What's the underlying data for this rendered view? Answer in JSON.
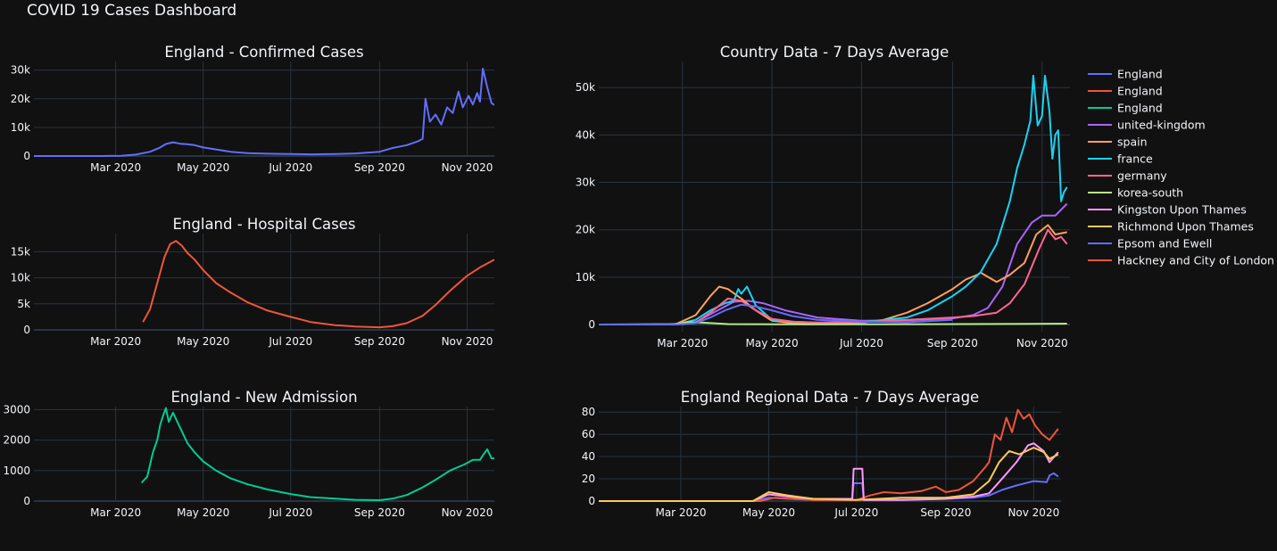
{
  "dashboard": {
    "title": "COVID 19 Cases Dashboard"
  },
  "chart_data": [
    {
      "id": "confirmed",
      "type": "line",
      "title": "England - Confirmed Cases",
      "xlim": [
        "2020-01-04",
        "2020-11-20"
      ],
      "ylim": [
        0,
        33000
      ],
      "yticks": [
        0,
        10000,
        20000,
        30000
      ],
      "ytick_labels": [
        "0",
        "10k",
        "20k",
        "30k"
      ],
      "xticks": [
        "2020-03-01",
        "2020-05-01",
        "2020-07-01",
        "2020-09-01",
        "2020-11-01"
      ],
      "xtick_labels": [
        "Mar 2020",
        "May 2020",
        "Jul 2020",
        "Sep 2020",
        "Nov 2020"
      ],
      "series": [
        {
          "color": "#636efa",
          "x": [
            "2020-01-04",
            "2020-02-20",
            "2020-03-05",
            "2020-03-15",
            "2020-03-25",
            "2020-04-01",
            "2020-04-05",
            "2020-04-10",
            "2020-04-15",
            "2020-04-20",
            "2020-04-25",
            "2020-05-01",
            "2020-05-10",
            "2020-05-20",
            "2020-06-01",
            "2020-06-15",
            "2020-07-01",
            "2020-07-15",
            "2020-08-01",
            "2020-08-15",
            "2020-09-01",
            "2020-09-10",
            "2020-09-20",
            "2020-09-28",
            "2020-10-01",
            "2020-10-03",
            "2020-10-06",
            "2020-10-10",
            "2020-10-14",
            "2020-10-18",
            "2020-10-22",
            "2020-10-26",
            "2020-10-29",
            "2020-11-02",
            "2020-11-05",
            "2020-11-08",
            "2020-11-10",
            "2020-11-12",
            "2020-11-15",
            "2020-11-18",
            "2020-11-20"
          ],
          "y": [
            0,
            0,
            100,
            500,
            1500,
            3000,
            4200,
            4800,
            4300,
            4100,
            3800,
            3000,
            2300,
            1500,
            1000,
            800,
            700,
            600,
            700,
            900,
            1500,
            2800,
            3800,
            5200,
            6000,
            20000,
            12000,
            14500,
            11000,
            17000,
            15000,
            22500,
            17000,
            21000,
            18000,
            22000,
            19000,
            30500,
            24000,
            18500,
            17800
          ]
        }
      ]
    },
    {
      "id": "hospital",
      "type": "line",
      "title": "England - Hospital Cases",
      "xlim": [
        "2020-01-04",
        "2020-11-20"
      ],
      "ylim": [
        0,
        18500
      ],
      "yticks": [
        0,
        5000,
        10000,
        15000
      ],
      "ytick_labels": [
        "0",
        "5k",
        "10k",
        "15k"
      ],
      "xticks": [
        "2020-03-01",
        "2020-05-01",
        "2020-07-01",
        "2020-09-01",
        "2020-11-01"
      ],
      "xtick_labels": [
        "Mar 2020",
        "May 2020",
        "Jul 2020",
        "Sep 2020",
        "Nov 2020"
      ],
      "series": [
        {
          "color": "#ef553b",
          "x": [
            "2020-03-20",
            "2020-03-25",
            "2020-03-30",
            "2020-04-04",
            "2020-04-08",
            "2020-04-12",
            "2020-04-16",
            "2020-04-20",
            "2020-04-25",
            "2020-05-01",
            "2020-05-10",
            "2020-05-20",
            "2020-06-01",
            "2020-06-15",
            "2020-07-01",
            "2020-07-15",
            "2020-08-01",
            "2020-08-15",
            "2020-09-01",
            "2020-09-10",
            "2020-09-20",
            "2020-10-01",
            "2020-10-10",
            "2020-10-20",
            "2020-11-01",
            "2020-11-10",
            "2020-11-20"
          ],
          "y": [
            1500,
            4000,
            9000,
            14000,
            16500,
            17100,
            16200,
            14800,
            13500,
            11500,
            9000,
            7200,
            5300,
            3700,
            2500,
            1500,
            900,
            650,
            500,
            700,
            1300,
            2700,
            4800,
            7500,
            10400,
            12000,
            13500
          ]
        }
      ]
    },
    {
      "id": "admission",
      "type": "line",
      "title": "England - New Admission",
      "xlim": [
        "2020-01-04",
        "2020-11-20"
      ],
      "ylim": [
        0,
        3100
      ],
      "yticks": [
        0,
        1000,
        2000,
        3000
      ],
      "ytick_labels": [
        "0",
        "1000",
        "2000",
        "3000"
      ],
      "xticks": [
        "2020-03-01",
        "2020-05-01",
        "2020-07-01",
        "2020-09-01",
        "2020-11-01"
      ],
      "xtick_labels": [
        "Mar 2020",
        "May 2020",
        "Jul 2020",
        "Sep 2020",
        "Nov 2020"
      ],
      "series": [
        {
          "color": "#00cc96",
          "x": [
            "2020-03-19",
            "2020-03-23",
            "2020-03-27",
            "2020-03-30",
            "2020-04-01",
            "2020-04-03",
            "2020-04-05",
            "2020-04-07",
            "2020-04-10",
            "2020-04-13",
            "2020-04-17",
            "2020-04-20",
            "2020-04-25",
            "2020-05-01",
            "2020-05-10",
            "2020-05-20",
            "2020-06-01",
            "2020-06-15",
            "2020-07-01",
            "2020-07-15",
            "2020-08-01",
            "2020-08-15",
            "2020-09-01",
            "2020-09-10",
            "2020-09-20",
            "2020-10-01",
            "2020-10-10",
            "2020-10-20",
            "2020-10-30",
            "2020-11-05",
            "2020-11-10",
            "2020-11-12",
            "2020-11-15",
            "2020-11-18",
            "2020-11-20"
          ],
          "y": [
            600,
            800,
            1600,
            2000,
            2500,
            2800,
            3050,
            2600,
            2900,
            2600,
            2200,
            1900,
            1600,
            1300,
            1000,
            750,
            550,
            380,
            230,
            130,
            80,
            40,
            30,
            80,
            200,
            450,
            700,
            1000,
            1200,
            1350,
            1350,
            1500,
            1700,
            1400,
            1400
          ]
        }
      ]
    },
    {
      "id": "country",
      "type": "line",
      "title": "Country Data - 7 Days Average",
      "xlim": [
        "2020-01-04",
        "2020-11-20"
      ],
      "ylim": [
        -1500,
        55500
      ],
      "yticks": [
        0,
        10000,
        20000,
        30000,
        40000,
        50000
      ],
      "ytick_labels": [
        "0",
        "10k",
        "20k",
        "30k",
        "40k",
        "50k"
      ],
      "xticks": [
        "2020-03-01",
        "2020-05-01",
        "2020-07-01",
        "2020-09-01",
        "2020-11-01"
      ],
      "xtick_labels": [
        "Mar 2020",
        "May 2020",
        "Jul 2020",
        "Sep 2020",
        "Nov 2020"
      ],
      "series": [
        {
          "color": "#ab63fa",
          "x": [
            "2020-01-04",
            "2020-02-20",
            "2020-03-10",
            "2020-03-25",
            "2020-04-05",
            "2020-04-15",
            "2020-04-25",
            "2020-05-10",
            "2020-06-01",
            "2020-07-01",
            "2020-08-01",
            "2020-09-01",
            "2020-09-15",
            "2020-09-25",
            "2020-10-05",
            "2020-10-15",
            "2020-10-25",
            "2020-11-01",
            "2020-11-10",
            "2020-11-18"
          ],
          "y": [
            0,
            0,
            500,
            3000,
            4800,
            5000,
            4500,
            3000,
            1500,
            800,
            900,
            1300,
            2000,
            3500,
            8000,
            17000,
            21500,
            23000,
            23000,
            25500
          ]
        },
        {
          "color": "#ffa15a",
          "x": [
            "2020-01-04",
            "2020-02-25",
            "2020-03-10",
            "2020-03-20",
            "2020-03-26",
            "2020-04-01",
            "2020-04-10",
            "2020-04-20",
            "2020-05-01",
            "2020-05-15",
            "2020-06-01",
            "2020-07-01",
            "2020-07-15",
            "2020-08-01",
            "2020-08-15",
            "2020-09-01",
            "2020-09-10",
            "2020-09-18",
            "2020-09-20",
            "2020-10-01",
            "2020-10-10",
            "2020-10-20",
            "2020-10-28",
            "2020-11-05",
            "2020-11-10",
            "2020-11-18"
          ],
          "y": [
            0,
            0,
            2000,
            6000,
            8000,
            7500,
            5500,
            3000,
            800,
            300,
            200,
            400,
            900,
            2500,
            4500,
            7500,
            9500,
            10500,
            11000,
            9000,
            10500,
            13000,
            19000,
            21000,
            19000,
            19500
          ]
        },
        {
          "color": "#19d3f3",
          "x": [
            "2020-01-04",
            "2020-02-25",
            "2020-03-10",
            "2020-03-20",
            "2020-03-30",
            "2020-04-05",
            "2020-04-08",
            "2020-04-10",
            "2020-04-14",
            "2020-04-20",
            "2020-05-01",
            "2020-05-15",
            "2020-06-01",
            "2020-07-01",
            "2020-08-01",
            "2020-08-15",
            "2020-09-01",
            "2020-09-10",
            "2020-09-20",
            "2020-10-01",
            "2020-10-10",
            "2020-10-15",
            "2020-10-20",
            "2020-10-24",
            "2020-10-26",
            "2020-10-29",
            "2020-11-01",
            "2020-11-03",
            "2020-11-06",
            "2020-11-08",
            "2020-11-10",
            "2020-11-12",
            "2020-11-14",
            "2020-11-16",
            "2020-11-18"
          ],
          "y": [
            0,
            0,
            1000,
            3000,
            4500,
            5000,
            7500,
            6500,
            8000,
            4000,
            1000,
            600,
            400,
            500,
            1500,
            3000,
            6000,
            8000,
            11000,
            17000,
            26000,
            33000,
            38000,
            43000,
            52500,
            42000,
            44000,
            52500,
            45000,
            35000,
            40000,
            41000,
            26000,
            28000,
            29000
          ]
        },
        {
          "color": "#ff6692",
          "x": [
            "2020-01-04",
            "2020-02-25",
            "2020-03-10",
            "2020-03-20",
            "2020-04-01",
            "2020-04-10",
            "2020-04-20",
            "2020-05-01",
            "2020-05-15",
            "2020-06-01",
            "2020-07-01",
            "2020-08-01",
            "2020-09-01",
            "2020-09-15",
            "2020-10-01",
            "2020-10-10",
            "2020-10-20",
            "2020-10-30",
            "2020-11-05",
            "2020-11-10",
            "2020-11-14",
            "2020-11-18"
          ],
          "y": [
            0,
            0,
            400,
            2500,
            5500,
            5000,
            3000,
            1200,
            600,
            400,
            500,
            1000,
            1500,
            1800,
            2500,
            4500,
            8500,
            16000,
            20000,
            18000,
            18500,
            17000
          ]
        },
        {
          "color": "#b6e880",
          "x": [
            "2020-01-04",
            "2020-02-25",
            "2020-03-05",
            "2020-03-15",
            "2020-04-01",
            "2020-06-01",
            "2020-09-01",
            "2020-11-18"
          ],
          "y": [
            0,
            100,
            500,
            400,
            100,
            50,
            100,
            200
          ]
        },
        {
          "color": "#636efa",
          "x": [
            "2020-01-04",
            "2020-02-25",
            "2020-03-10",
            "2020-03-20",
            "2020-03-30",
            "2020-04-10",
            "2020-04-20",
            "2020-05-01",
            "2020-05-15",
            "2020-06-01",
            "2020-07-01",
            "2020-08-01",
            "2020-09-01"
          ],
          "y": [
            0,
            0,
            300,
            1500,
            3000,
            4200,
            3800,
            3000,
            1800,
            1000,
            600,
            500,
            1000
          ]
        }
      ],
      "legend": {
        "placement": "right",
        "entries": [
          {
            "name": "England",
            "color": "#636efa"
          },
          {
            "name": "England",
            "color": "#ef553b"
          },
          {
            "name": "England",
            "color": "#00cc96"
          },
          {
            "name": "united-kingdom",
            "color": "#ab63fa"
          },
          {
            "name": "spain",
            "color": "#ffa15a"
          },
          {
            "name": "france",
            "color": "#19d3f3"
          },
          {
            "name": "germany",
            "color": "#ff6692"
          },
          {
            "name": "korea-south",
            "color": "#b6e880"
          },
          {
            "name": "Kingston Upon Thames",
            "color": "#ff97ff"
          },
          {
            "name": "Richmond Upon Thames",
            "color": "#fecb52"
          },
          {
            "name": "Epsom and Ewell",
            "color": "#636efa"
          },
          {
            "name": "Hackney and City of London",
            "color": "#ef553b"
          }
        ]
      }
    },
    {
      "id": "regional",
      "type": "line",
      "title": "England Regional Data - 7 Days Average",
      "xlim": [
        "2020-01-04",
        "2020-11-20"
      ],
      "ylim": [
        0,
        85
      ],
      "yticks": [
        0,
        20,
        40,
        60,
        80
      ],
      "ytick_labels": [
        "0",
        "20",
        "40",
        "60",
        "80"
      ],
      "xticks": [
        "2020-03-01",
        "2020-05-01",
        "2020-07-01",
        "2020-09-01",
        "2020-11-01"
      ],
      "xtick_labels": [
        "Mar 2020",
        "May 2020",
        "Jul 2020",
        "Sep 2020",
        "Nov 2020"
      ],
      "series": [
        {
          "color": "#636efa",
          "x": [
            "2020-01-04",
            "2020-04-20",
            "2020-05-01",
            "2020-05-15",
            "2020-06-01",
            "2020-06-28",
            "2020-06-29",
            "2020-07-05",
            "2020-07-06",
            "2020-08-01",
            "2020-09-01",
            "2020-09-20",
            "2020-10-01",
            "2020-10-10",
            "2020-10-20",
            "2020-11-01",
            "2020-11-10",
            "2020-11-12",
            "2020-11-15",
            "2020-11-18"
          ],
          "y": [
            0,
            0,
            3,
            2,
            1,
            1,
            16,
            16,
            1,
            1,
            2,
            3,
            5,
            10,
            14,
            18,
            17,
            23,
            25,
            22
          ]
        },
        {
          "color": "#ef553b",
          "x": [
            "2020-01-04",
            "2020-04-25",
            "2020-05-05",
            "2020-06-01",
            "2020-07-01",
            "2020-07-10",
            "2020-07-20",
            "2020-08-01",
            "2020-08-15",
            "2020-08-25",
            "2020-09-01",
            "2020-09-10",
            "2020-09-20",
            "2020-09-28",
            "2020-10-01",
            "2020-10-05",
            "2020-10-09",
            "2020-10-13",
            "2020-10-17",
            "2020-10-21",
            "2020-10-25",
            "2020-10-29",
            "2020-11-02",
            "2020-11-07",
            "2020-11-12",
            "2020-11-18"
          ],
          "y": [
            0,
            0,
            3,
            1,
            1,
            5,
            8,
            7,
            9,
            13,
            8,
            10,
            18,
            30,
            35,
            60,
            55,
            75,
            62,
            82,
            74,
            78,
            68,
            60,
            55,
            65
          ]
        },
        {
          "color": "#ff97ff",
          "x": [
            "2020-01-04",
            "2020-04-20",
            "2020-05-01",
            "2020-05-15",
            "2020-06-01",
            "2020-06-28",
            "2020-06-29",
            "2020-07-05",
            "2020-07-06",
            "2020-08-01",
            "2020-09-01",
            "2020-09-20",
            "2020-10-01",
            "2020-10-10",
            "2020-10-20",
            "2020-10-28",
            "2020-11-01",
            "2020-11-08",
            "2020-11-12",
            "2020-11-18"
          ],
          "y": [
            0,
            0,
            6,
            4,
            2,
            2,
            29,
            29,
            1,
            1,
            2,
            4,
            7,
            20,
            35,
            50,
            52,
            45,
            35,
            44
          ]
        },
        {
          "color": "#fecb52",
          "x": [
            "2020-01-04",
            "2020-04-20",
            "2020-05-01",
            "2020-05-15",
            "2020-06-01",
            "2020-07-01",
            "2020-08-01",
            "2020-09-01",
            "2020-09-20",
            "2020-10-01",
            "2020-10-08",
            "2020-10-15",
            "2020-10-22",
            "2020-11-01",
            "2020-11-08",
            "2020-11-12",
            "2020-11-18"
          ],
          "y": [
            0,
            0,
            8,
            5,
            2,
            1,
            3,
            3,
            6,
            18,
            35,
            45,
            42,
            48,
            44,
            38,
            42
          ]
        }
      ]
    }
  ]
}
